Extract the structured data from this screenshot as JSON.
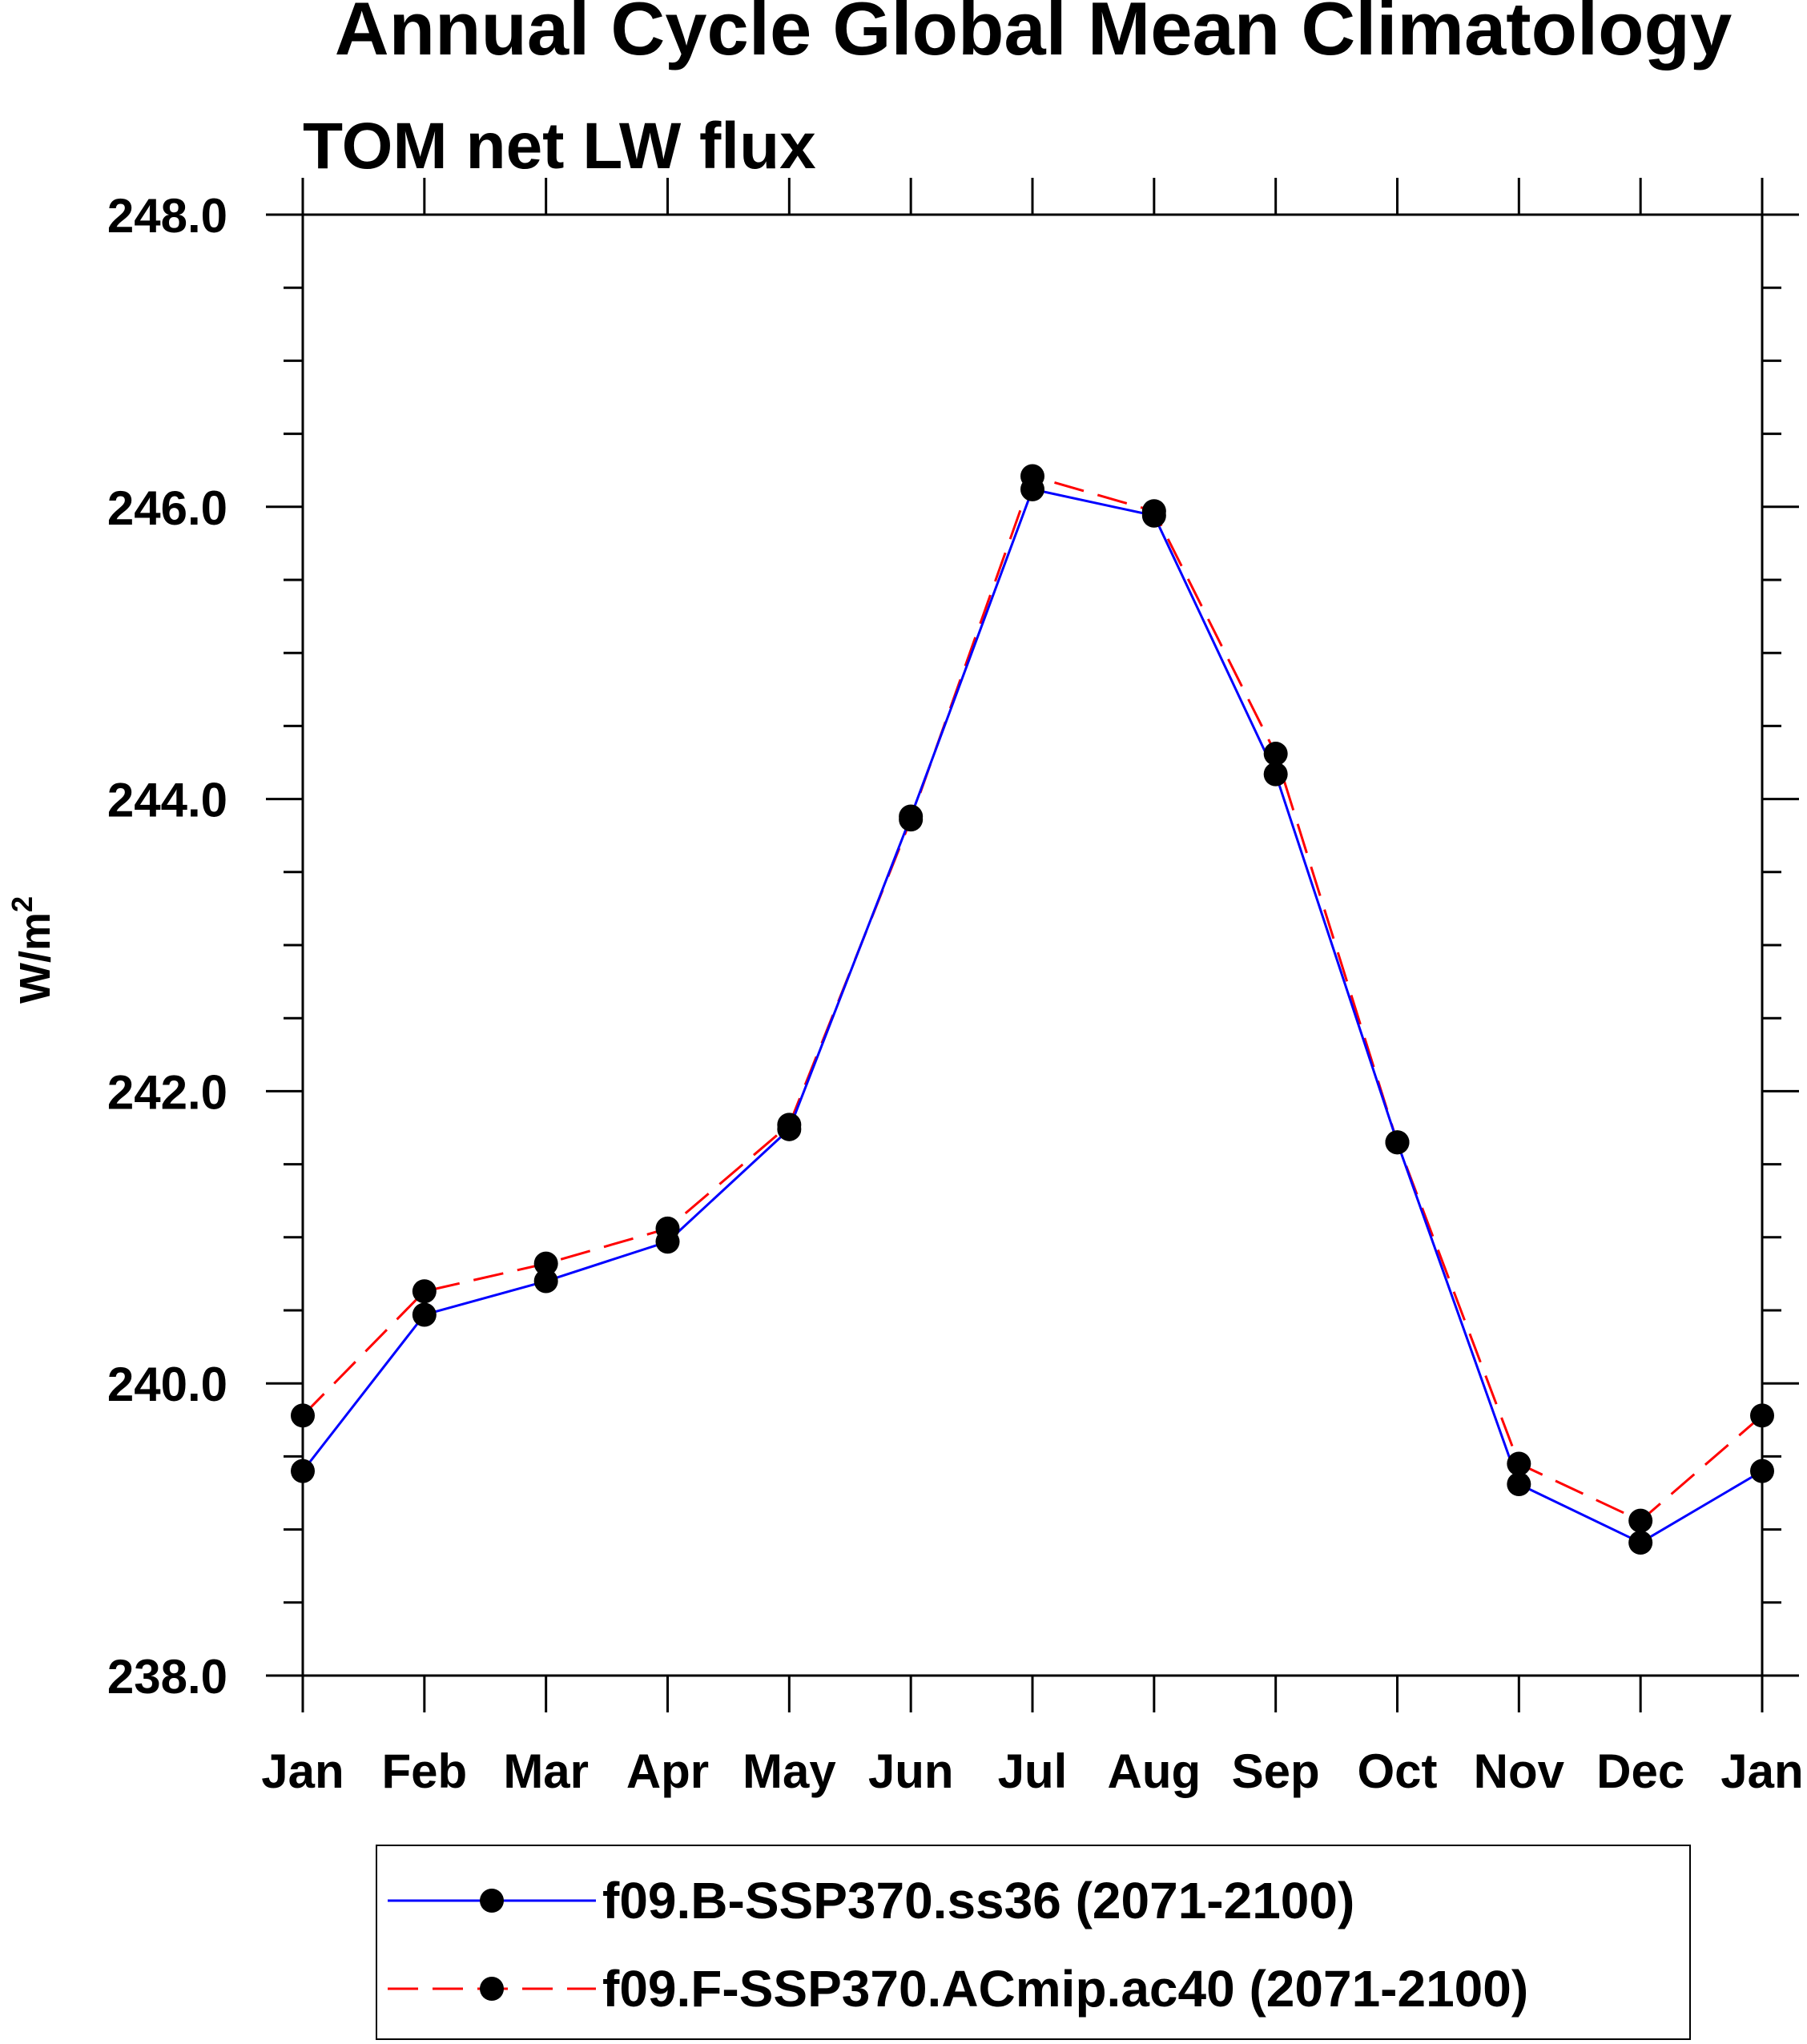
{
  "chart_data": {
    "type": "line",
    "title": "Annual Cycle Global Mean Climatology",
    "subtitle": "TOM net LW flux",
    "xlabel": "",
    "ylabel": "W/m",
    "ylabel_superscript": "2",
    "categories": [
      "Jan",
      "Feb",
      "Mar",
      "Apr",
      "May",
      "Jun",
      "Jul",
      "Aug",
      "Sep",
      "Oct",
      "Nov",
      "Dec",
      "Jan"
    ],
    "ylim": [
      238.0,
      248.0
    ],
    "yticks": [
      "238.0",
      "240.0",
      "242.0",
      "244.0",
      "246.0",
      "248.0"
    ],
    "grid": false,
    "legend_position": "bottom",
    "series": [
      {
        "name": "f09.B-SSP370.ss36 (2071-2100)",
        "color": "#0000ff",
        "linestyle": "solid",
        "marker": "filled-circle",
        "values": [
          239.4,
          240.47,
          240.7,
          240.97,
          241.74,
          243.88,
          246.12,
          245.94,
          244.17,
          241.65,
          239.31,
          238.91,
          239.4
        ]
      },
      {
        "name": "f09.F-SSP370.ACmip.ac40 (2071-2100)",
        "color": "#ff0000",
        "linestyle": "dashed",
        "marker": "filled-circle",
        "values": [
          239.78,
          240.63,
          240.82,
          241.06,
          241.77,
          243.86,
          246.21,
          245.97,
          244.31,
          241.65,
          239.45,
          239.06,
          239.78
        ]
      }
    ]
  }
}
